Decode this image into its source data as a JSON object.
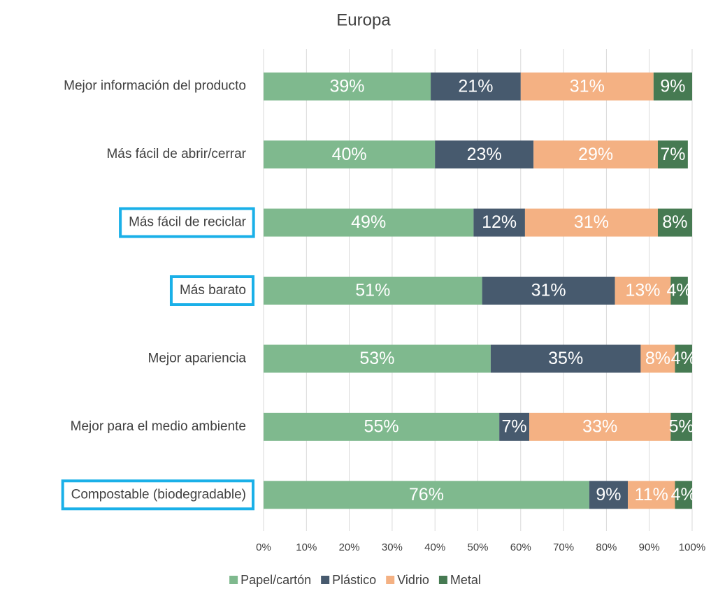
{
  "chart_data": {
    "type": "stacked-barh",
    "title": "Europa",
    "categories": [
      "Mejor información del producto",
      "Más fácil de abrir/cerrar",
      "Más fácil de reciclar",
      "Más barato",
      "Mejor apariencia",
      "Mejor para el medio ambiente",
      "Compostable (biodegradable)"
    ],
    "highlight": [
      false,
      false,
      true,
      true,
      false,
      false,
      true
    ],
    "highlight_color": "#1ab0e8",
    "series": [
      {
        "name": "Papel/cartón",
        "color": "#7fb98e",
        "values": [
          39,
          40,
          49,
          51,
          53,
          55,
          76
        ],
        "value_labels": [
          "39%",
          "40%",
          "49%",
          "51%",
          "53%",
          "55%",
          "76%"
        ]
      },
      {
        "name": "Plástico",
        "color": "#475a6e",
        "values": [
          21,
          23,
          12,
          31,
          35,
          7,
          9
        ],
        "value_labels": [
          "21%",
          "23%",
          "12%",
          "31%",
          "35%",
          "7%",
          "9%"
        ]
      },
      {
        "name": "Vidrio",
        "color": "#f4b183",
        "values": [
          31,
          29,
          31,
          13,
          8,
          33,
          11
        ],
        "value_labels": [
          "31%",
          "29%",
          "31%",
          "13%",
          "8%",
          "33%",
          "11%"
        ]
      },
      {
        "name": "Metal",
        "color": "#467a52",
        "values": [
          9,
          7,
          8,
          4,
          4,
          5,
          4
        ],
        "value_labels": [
          "9%",
          "7%",
          "8%",
          "4%",
          "4%",
          "5%",
          "4%"
        ]
      }
    ],
    "xlim": [
      0,
      100
    ],
    "xticks": [
      {
        "value": 0,
        "label": "0%"
      },
      {
        "value": 10,
        "label": "10%"
      },
      {
        "value": 20,
        "label": "20%"
      },
      {
        "value": 30,
        "label": "30%"
      },
      {
        "value": 40,
        "label": "40%"
      },
      {
        "value": 50,
        "label": "50%"
      },
      {
        "value": 60,
        "label": "60%"
      },
      {
        "value": 70,
        "label": "70%"
      },
      {
        "value": 80,
        "label": "80%"
      },
      {
        "value": 90,
        "label": "90%"
      },
      {
        "value": 100,
        "label": "100%"
      }
    ],
    "grid": true,
    "legend": "bottom"
  }
}
